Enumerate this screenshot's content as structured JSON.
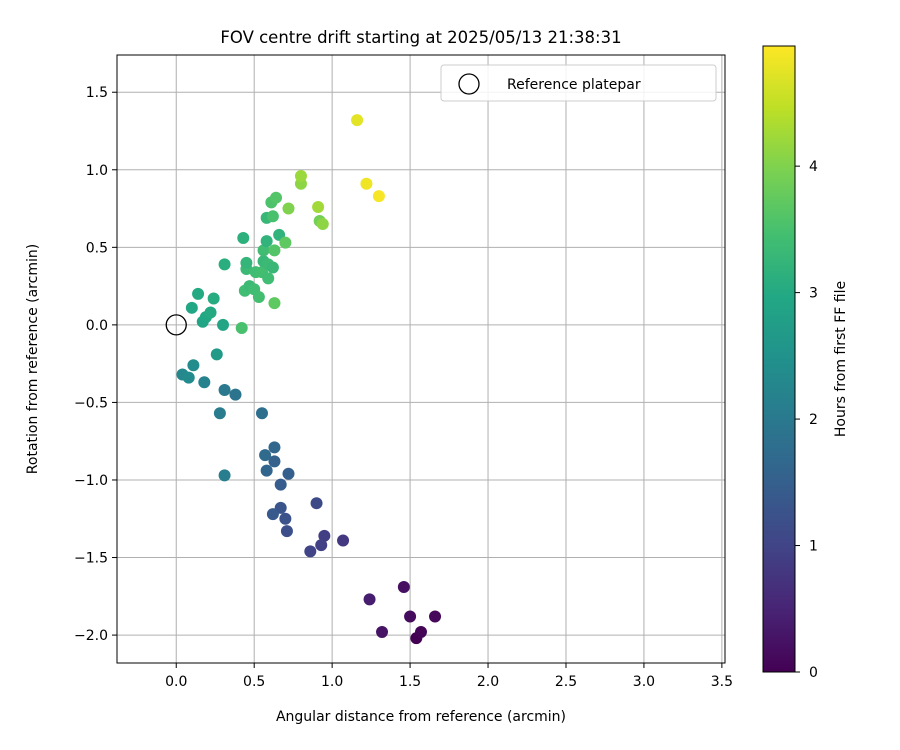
{
  "chart_data": {
    "type": "scatter",
    "title": "FOV centre drift starting at 2025/05/13 21:38:31",
    "xlabel": "Angular distance from reference (arcmin)",
    "ylabel": "Rotation from reference (arcmin)",
    "xlim": [
      -0.38,
      3.52
    ],
    "ylim": [
      -2.18,
      1.74
    ],
    "x_ticks": [
      0.0,
      0.5,
      1.0,
      1.5,
      2.0,
      2.5,
      3.0,
      3.5
    ],
    "x_tick_labels": [
      "0.0",
      "0.5",
      "1.0",
      "1.5",
      "2.0",
      "2.5",
      "3.0",
      "3.5"
    ],
    "y_ticks": [
      -2.0,
      -1.5,
      -1.0,
      -0.5,
      0.0,
      0.5,
      1.0,
      1.5
    ],
    "y_tick_labels": [
      "−2.0",
      "−1.5",
      "−1.0",
      "−0.5",
      "0.0",
      "0.5",
      "1.0",
      "1.5"
    ],
    "grid": true,
    "colormap": "viridis",
    "colorbar": {
      "label": "Hours from first FF file",
      "range": [
        0,
        4.95
      ],
      "ticks": [
        0,
        1,
        2,
        3,
        4
      ],
      "tick_labels": [
        "0",
        "1",
        "2",
        "3",
        "4"
      ]
    },
    "legend": {
      "position": "top-right",
      "entries": [
        {
          "label": "Reference platepar",
          "marker": "hollow-circle",
          "color": "#000000"
        }
      ]
    },
    "reference_point": {
      "x": 0.0,
      "y": 0.0
    },
    "series": [
      {
        "color_variable": "hours",
        "points": [
          {
            "x": 1.54,
            "y": -2.02,
            "hours": 0.0
          },
          {
            "x": 1.57,
            "y": -1.98,
            "hours": 0.05
          },
          {
            "x": 1.66,
            "y": -1.88,
            "hours": 0.1
          },
          {
            "x": 1.5,
            "y": -1.88,
            "hours": 0.15
          },
          {
            "x": 1.46,
            "y": -1.69,
            "hours": 0.2
          },
          {
            "x": 1.32,
            "y": -1.98,
            "hours": 0.25
          },
          {
            "x": 1.24,
            "y": -1.77,
            "hours": 0.4
          },
          {
            "x": 1.07,
            "y": -1.39,
            "hours": 0.8
          },
          {
            "x": 0.95,
            "y": -1.36,
            "hours": 0.9
          },
          {
            "x": 0.93,
            "y": -1.42,
            "hours": 0.95
          },
          {
            "x": 0.86,
            "y": -1.46,
            "hours": 1.0
          },
          {
            "x": 0.9,
            "y": -1.15,
            "hours": 1.1
          },
          {
            "x": 0.71,
            "y": -1.33,
            "hours": 1.2
          },
          {
            "x": 0.7,
            "y": -1.25,
            "hours": 1.25
          },
          {
            "x": 0.67,
            "y": -1.18,
            "hours": 1.3
          },
          {
            "x": 0.62,
            "y": -1.22,
            "hours": 1.4
          },
          {
            "x": 0.67,
            "y": -1.03,
            "hours": 1.45
          },
          {
            "x": 0.72,
            "y": -0.96,
            "hours": 1.5
          },
          {
            "x": 0.63,
            "y": -0.88,
            "hours": 1.55
          },
          {
            "x": 0.58,
            "y": -0.94,
            "hours": 1.6
          },
          {
            "x": 0.63,
            "y": -0.79,
            "hours": 1.65
          },
          {
            "x": 0.57,
            "y": -0.84,
            "hours": 1.7
          },
          {
            "x": 0.55,
            "y": -0.57,
            "hours": 1.8
          },
          {
            "x": 0.38,
            "y": -0.45,
            "hours": 1.9
          },
          {
            "x": 0.31,
            "y": -0.42,
            "hours": 2.0
          },
          {
            "x": 0.28,
            "y": -0.57,
            "hours": 2.05
          },
          {
            "x": 0.31,
            "y": -0.97,
            "hours": 2.1
          },
          {
            "x": 0.18,
            "y": -0.37,
            "hours": 2.2
          },
          {
            "x": 0.04,
            "y": -0.32,
            "hours": 2.3
          },
          {
            "x": 0.08,
            "y": -0.34,
            "hours": 2.35
          },
          {
            "x": 0.11,
            "y": -0.26,
            "hours": 2.4
          },
          {
            "x": 0.26,
            "y": -0.19,
            "hours": 2.7
          },
          {
            "x": 0.3,
            "y": 0.0,
            "hours": 2.9
          },
          {
            "x": 0.17,
            "y": 0.02,
            "hours": 2.9
          },
          {
            "x": 0.19,
            "y": 0.05,
            "hours": 2.95
          },
          {
            "x": 0.22,
            "y": 0.08,
            "hours": 3.0
          },
          {
            "x": 0.1,
            "y": 0.11,
            "hours": 2.95
          },
          {
            "x": 0.14,
            "y": 0.2,
            "hours": 3.0
          },
          {
            "x": 0.24,
            "y": 0.17,
            "hours": 3.05
          },
          {
            "x": 0.31,
            "y": 0.39,
            "hours": 3.1
          },
          {
            "x": 0.43,
            "y": 0.56,
            "hours": 3.15
          },
          {
            "x": 0.42,
            "y": -0.02,
            "hours": 3.5
          },
          {
            "x": 0.44,
            "y": 0.22,
            "hours": 3.4
          },
          {
            "x": 0.47,
            "y": 0.25,
            "hours": 3.35
          },
          {
            "x": 0.5,
            "y": 0.23,
            "hours": 3.4
          },
          {
            "x": 0.53,
            "y": 0.18,
            "hours": 3.45
          },
          {
            "x": 0.45,
            "y": 0.36,
            "hours": 3.35
          },
          {
            "x": 0.45,
            "y": 0.4,
            "hours": 3.25
          },
          {
            "x": 0.51,
            "y": 0.34,
            "hours": 3.4
          },
          {
            "x": 0.55,
            "y": 0.34,
            "hours": 3.45
          },
          {
            "x": 0.59,
            "y": 0.3,
            "hours": 3.4
          },
          {
            "x": 0.56,
            "y": 0.41,
            "hours": 3.3
          },
          {
            "x": 0.59,
            "y": 0.39,
            "hours": 3.35
          },
          {
            "x": 0.62,
            "y": 0.37,
            "hours": 3.3
          },
          {
            "x": 0.56,
            "y": 0.48,
            "hours": 3.4
          },
          {
            "x": 0.58,
            "y": 0.54,
            "hours": 3.2
          },
          {
            "x": 0.63,
            "y": 0.48,
            "hours": 3.6
          },
          {
            "x": 0.66,
            "y": 0.58,
            "hours": 3.2
          },
          {
            "x": 0.7,
            "y": 0.53,
            "hours": 3.7
          },
          {
            "x": 0.58,
            "y": 0.69,
            "hours": 3.3
          },
          {
            "x": 0.62,
            "y": 0.7,
            "hours": 3.5
          },
          {
            "x": 0.61,
            "y": 0.79,
            "hours": 3.55
          },
          {
            "x": 0.64,
            "y": 0.82,
            "hours": 3.6
          },
          {
            "x": 0.72,
            "y": 0.75,
            "hours": 4.0
          },
          {
            "x": 0.8,
            "y": 0.91,
            "hours": 4.1
          },
          {
            "x": 0.8,
            "y": 0.96,
            "hours": 4.2
          },
          {
            "x": 0.63,
            "y": 0.14,
            "hours": 3.7
          },
          {
            "x": 0.91,
            "y": 0.76,
            "hours": 4.25
          },
          {
            "x": 0.92,
            "y": 0.67,
            "hours": 3.9
          },
          {
            "x": 0.94,
            "y": 0.65,
            "hours": 4.1
          },
          {
            "x": 1.16,
            "y": 1.32,
            "hours": 4.75
          },
          {
            "x": 1.22,
            "y": 0.91,
            "hours": 4.85
          },
          {
            "x": 1.3,
            "y": 0.83,
            "hours": 4.9
          }
        ]
      }
    ]
  }
}
